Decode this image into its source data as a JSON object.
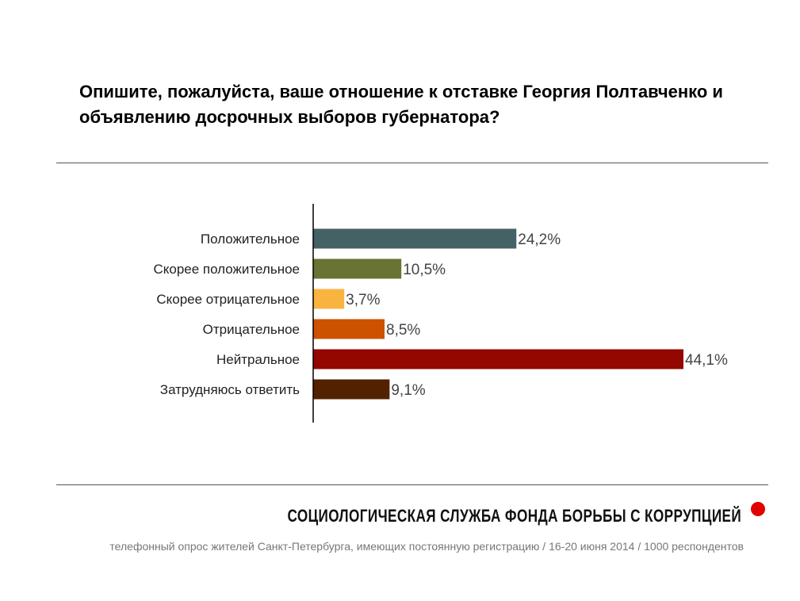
{
  "chart_data": {
    "type": "bar",
    "orientation": "horizontal",
    "title": "Опишите, пожалуйста, ваше отношение к отставке Георгия Полтавченко и объявлению досрочных выборов губернатора?",
    "categories": [
      "Положительное",
      "Скорее положительное",
      "Скорее отрицательное",
      "Отрицательное",
      "Нейтральное",
      "Затрудняюсь ответить"
    ],
    "values": [
      24.2,
      10.5,
      3.7,
      8.5,
      44.1,
      9.1
    ],
    "value_labels": [
      "24,2%",
      "10,5%",
      "3,7%",
      "8,5%",
      "44,1%",
      "9,1%"
    ],
    "colors": [
      "#446166",
      "#697334",
      "#f9b43f",
      "#cc5200",
      "#940700",
      "#522100"
    ],
    "xlabel": "",
    "ylabel": "",
    "xlim": [
      0,
      45
    ],
    "grid": false
  },
  "footer": {
    "organization": "СОЦИОЛОГИЧЕСКАЯ СЛУЖБА ФОНДА БОРЬБЫ С КОРРУПЦИЕЙ",
    "note": "телефонный опрос жителей Санкт-Петербурга, имеющих постоянную регистрацию / 16-20 июня 2014 / 1000 респондентов",
    "dot_color": "#e00000"
  }
}
